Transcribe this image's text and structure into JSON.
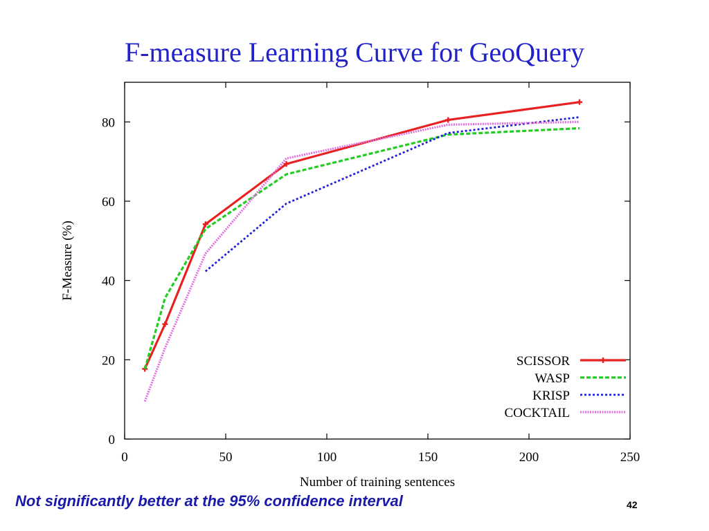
{
  "slide": {
    "title": "F-measure Learning Curve for GeoQuery",
    "note": "Not significantly better at the 95% confidence interval",
    "page_number": "42"
  },
  "chart_data": {
    "type": "line",
    "title": "",
    "xlabel": "Number of training sentences",
    "ylabel": "F-Measure (%)",
    "xlim": [
      0,
      250
    ],
    "ylim": [
      0,
      90
    ],
    "x_ticks": [
      0,
      50,
      100,
      150,
      200,
      250
    ],
    "y_ticks": [
      0,
      20,
      40,
      60,
      80
    ],
    "grid": false,
    "legend_position": "bottom-right",
    "series": [
      {
        "name": "SCISSOR",
        "color": "#e82020",
        "style": "solid",
        "points": [
          [
            10,
            17.7
          ],
          [
            20,
            29
          ],
          [
            40,
            54.2
          ],
          [
            80,
            69.4
          ],
          [
            160,
            80.5
          ],
          [
            225,
            85
          ]
        ]
      },
      {
        "name": "WASP",
        "color": "#22cc22",
        "style": "dashed",
        "points": [
          [
            10,
            17.7
          ],
          [
            20,
            35.6
          ],
          [
            40,
            53
          ],
          [
            80,
            66.8
          ],
          [
            160,
            76.8
          ],
          [
            225,
            78.4
          ]
        ]
      },
      {
        "name": "KRISP",
        "color": "#2020d8",
        "style": "dotted",
        "points": [
          [
            40,
            42.3
          ],
          [
            80,
            59.4
          ],
          [
            160,
            77.2
          ],
          [
            225,
            81.2
          ]
        ]
      },
      {
        "name": "COCKTAIL",
        "color": "#e070e0",
        "style": "fine-dotted",
        "points": [
          [
            10,
            9.5
          ],
          [
            20,
            23
          ],
          [
            40,
            46.8
          ],
          [
            80,
            70.8
          ],
          [
            160,
            79.3
          ],
          [
            225,
            80
          ]
        ]
      }
    ]
  }
}
